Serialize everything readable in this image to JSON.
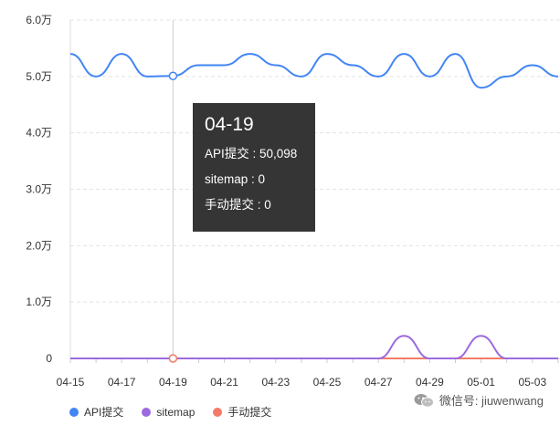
{
  "chart_data": {
    "type": "line",
    "x": [
      "04-15",
      "04-16",
      "04-17",
      "04-18",
      "04-19",
      "04-20",
      "04-21",
      "04-22",
      "04-23",
      "04-24",
      "04-25",
      "04-26",
      "04-27",
      "04-28",
      "04-29",
      "04-30",
      "05-01",
      "05-02",
      "05-03",
      "05-04"
    ],
    "x_tick_labels": [
      "04-15",
      "04-17",
      "04-19",
      "04-21",
      "04-23",
      "04-25",
      "04-27",
      "04-29",
      "05-01",
      "05-03"
    ],
    "y_tick_labels": [
      "0",
      "1.0万",
      "2.0万",
      "3.0万",
      "4.0万",
      "5.0万",
      "6.0万"
    ],
    "ylim": [
      0,
      60000
    ],
    "grid": true,
    "legend_position": "bottom-left",
    "series": [
      {
        "name": "API提交",
        "color": "#4285f4",
        "values": [
          54000,
          50000,
          54000,
          50000,
          50098,
          52000,
          52000,
          54000,
          52000,
          50000,
          54000,
          52000,
          50000,
          54000,
          50000,
          54000,
          48000,
          50000,
          52000,
          50000
        ]
      },
      {
        "name": "sitemap",
        "color": "#9c6ade",
        "values": [
          0,
          0,
          0,
          0,
          0,
          0,
          0,
          0,
          0,
          0,
          0,
          0,
          0,
          4000,
          0,
          0,
          4000,
          0,
          0,
          0
        ]
      },
      {
        "name": "手动提交",
        "color": "#f37b66",
        "values": [
          0,
          0,
          0,
          0,
          0,
          0,
          0,
          0,
          0,
          0,
          0,
          0,
          0,
          0,
          0,
          0,
          0,
          0,
          0,
          0
        ]
      }
    ],
    "highlight_index": 4
  },
  "tooltip": {
    "title": "04-19",
    "rows": [
      "API提交 : 50,098",
      "sitemap : 0",
      "手动提交 : 0"
    ]
  },
  "watermark": {
    "text": "微信号: jiuwenwang",
    "icon": "wechat-icon"
  }
}
